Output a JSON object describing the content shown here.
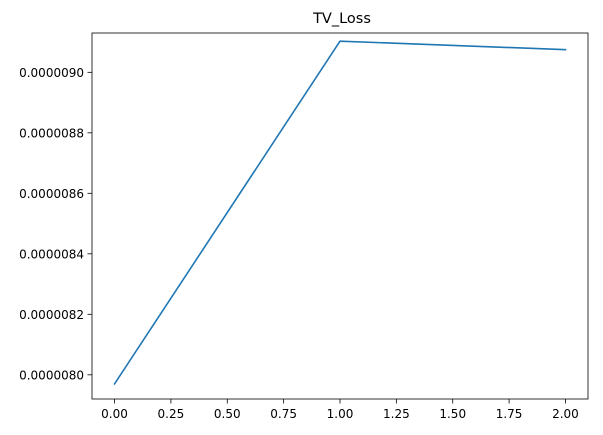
{
  "chart_data": {
    "type": "line",
    "title": "TV_Loss",
    "xlabel": "",
    "ylabel": "",
    "x": [
      0,
      1,
      2
    ],
    "series": [
      {
        "values": [
          7.97e-06,
          9.103e-06,
          9.075e-06
        ],
        "color": "#1f77b4"
      }
    ],
    "xlim": [
      -0.1,
      2.1
    ],
    "ylim": [
      7.92e-06,
      9.13e-06
    ],
    "xticks": [
      0.0,
      0.25,
      0.5,
      0.75,
      1.0,
      1.25,
      1.5,
      1.75,
      2.0
    ],
    "xtick_labels": [
      "0.00",
      "0.25",
      "0.50",
      "0.75",
      "1.00",
      "1.25",
      "1.50",
      "1.75",
      "2.00"
    ],
    "yticks": [
      8e-06,
      8.2e-06,
      8.4e-06,
      8.6e-06,
      8.8e-06,
      9e-06
    ],
    "ytick_labels": [
      "0.0000080",
      "0.0000082",
      "0.0000084",
      "0.0000086",
      "0.0000088",
      "0.0000090"
    ],
    "grid": false,
    "legend": false
  }
}
